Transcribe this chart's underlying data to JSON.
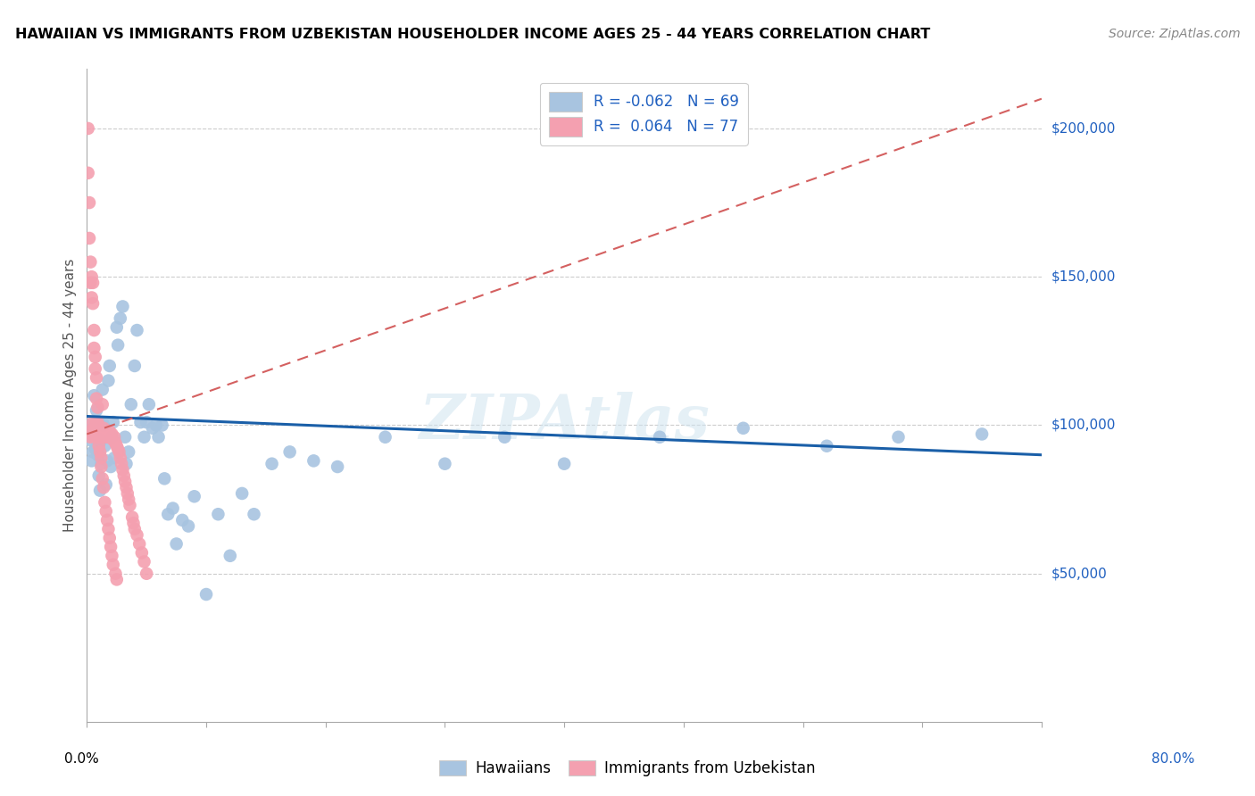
{
  "title": "HAWAIIAN VS IMMIGRANTS FROM UZBEKISTAN HOUSEHOLDER INCOME AGES 25 - 44 YEARS CORRELATION CHART",
  "source": "Source: ZipAtlas.com",
  "ylabel": "Householder Income Ages 25 - 44 years",
  "legend_label1": "Hawaiians",
  "legend_label2": "Immigrants from Uzbekistan",
  "r_hawaiian": -0.062,
  "n_hawaiian": 69,
  "r_uzbek": 0.064,
  "n_uzbek": 77,
  "color_hawaiian": "#a8c4e0",
  "color_uzbek": "#f4a0b0",
  "line_color_hawaiian": "#1a5fa8",
  "line_color_uzbek": "#d46060",
  "watermark": "ZIPAtlas",
  "hawaiian_x": [
    0.002,
    0.003,
    0.004,
    0.005,
    0.006,
    0.007,
    0.008,
    0.008,
    0.009,
    0.01,
    0.01,
    0.011,
    0.012,
    0.012,
    0.013,
    0.013,
    0.014,
    0.015,
    0.016,
    0.017,
    0.018,
    0.019,
    0.02,
    0.021,
    0.022,
    0.023,
    0.025,
    0.026,
    0.028,
    0.03,
    0.032,
    0.033,
    0.035,
    0.037,
    0.04,
    0.042,
    0.045,
    0.048,
    0.05,
    0.052,
    0.055,
    0.058,
    0.06,
    0.063,
    0.065,
    0.068,
    0.072,
    0.075,
    0.08,
    0.085,
    0.09,
    0.1,
    0.11,
    0.12,
    0.13,
    0.14,
    0.155,
    0.17,
    0.19,
    0.21,
    0.25,
    0.3,
    0.35,
    0.4,
    0.48,
    0.55,
    0.62,
    0.68,
    0.75
  ],
  "hawaiian_y": [
    100000,
    95000,
    88000,
    91000,
    110000,
    92000,
    100000,
    105000,
    90000,
    95000,
    83000,
    78000,
    95000,
    87000,
    112000,
    101000,
    100000,
    93000,
    80000,
    88000,
    115000,
    120000,
    86000,
    96000,
    101000,
    89000,
    133000,
    127000,
    136000,
    140000,
    96000,
    87000,
    91000,
    107000,
    120000,
    132000,
    101000,
    96000,
    101000,
    107000,
    99000,
    100000,
    96000,
    100000,
    82000,
    70000,
    72000,
    60000,
    68000,
    66000,
    76000,
    43000,
    70000,
    56000,
    77000,
    70000,
    87000,
    91000,
    88000,
    86000,
    96000,
    87000,
    96000,
    87000,
    96000,
    99000,
    93000,
    96000,
    97000
  ],
  "uzbek_x": [
    0.001,
    0.001,
    0.002,
    0.002,
    0.002,
    0.003,
    0.003,
    0.003,
    0.004,
    0.004,
    0.004,
    0.005,
    0.005,
    0.005,
    0.006,
    0.006,
    0.006,
    0.007,
    0.007,
    0.007,
    0.008,
    0.008,
    0.008,
    0.009,
    0.009,
    0.01,
    0.01,
    0.01,
    0.011,
    0.011,
    0.012,
    0.012,
    0.013,
    0.013,
    0.013,
    0.014,
    0.014,
    0.015,
    0.015,
    0.016,
    0.016,
    0.017,
    0.017,
    0.018,
    0.018,
    0.019,
    0.019,
    0.02,
    0.02,
    0.021,
    0.021,
    0.022,
    0.022,
    0.023,
    0.024,
    0.024,
    0.025,
    0.025,
    0.026,
    0.027,
    0.028,
    0.029,
    0.03,
    0.031,
    0.032,
    0.033,
    0.034,
    0.035,
    0.036,
    0.038,
    0.039,
    0.04,
    0.042,
    0.044,
    0.046,
    0.048,
    0.05
  ],
  "uzbek_y": [
    200000,
    185000,
    175000,
    163000,
    98000,
    155000,
    148000,
    96000,
    150000,
    143000,
    97000,
    148000,
    141000,
    101000,
    132000,
    126000,
    99000,
    123000,
    119000,
    96000,
    116000,
    109000,
    101000,
    106000,
    101000,
    99000,
    96000,
    93000,
    96000,
    91000,
    89000,
    86000,
    107000,
    96000,
    82000,
    99000,
    79000,
    96000,
    74000,
    98000,
    71000,
    96000,
    68000,
    96000,
    65000,
    98000,
    62000,
    96000,
    59000,
    97000,
    56000,
    95000,
    53000,
    96000,
    94000,
    50000,
    93000,
    48000,
    92000,
    91000,
    89000,
    87000,
    85000,
    83000,
    81000,
    79000,
    77000,
    75000,
    73000,
    69000,
    67000,
    65000,
    63000,
    60000,
    57000,
    54000,
    50000
  ],
  "xlim": [
    0.0,
    0.8
  ],
  "ylim": [
    0,
    220000
  ],
  "ytick_vals": [
    50000,
    100000,
    150000,
    200000
  ],
  "ytick_labels": [
    "$50,000",
    "$100,000",
    "$150,000",
    "$200,000"
  ]
}
